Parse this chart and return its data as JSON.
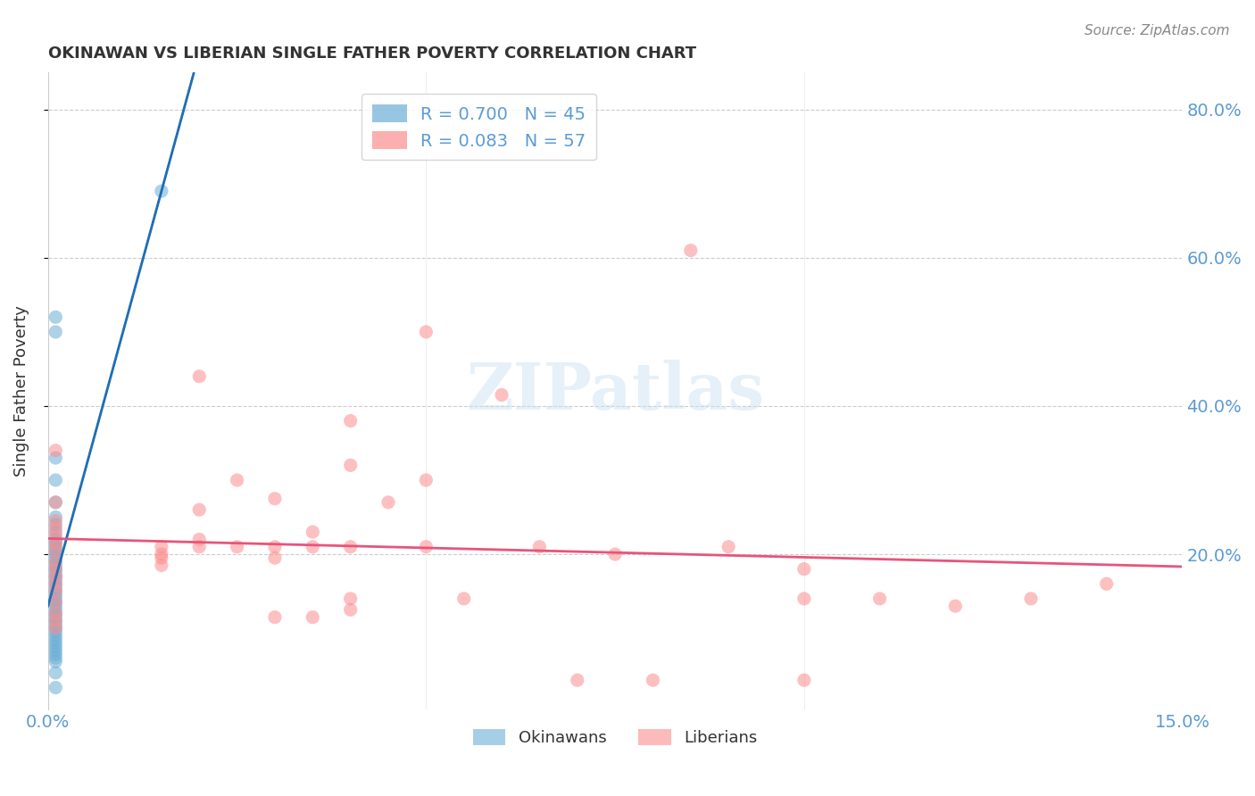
{
  "title": "OKINAWAN VS LIBERIAN SINGLE FATHER POVERTY CORRELATION CHART",
  "source": "Source: ZipAtlas.com",
  "ylabel": "Single Father Poverty",
  "xlabel_ticks": [
    "0.0%",
    "15.0%"
  ],
  "ylabel_ticks": [
    "20.0%",
    "40.0%",
    "60.0%",
    "80.0%"
  ],
  "xlim": [
    0.0,
    0.15
  ],
  "ylim": [
    -0.01,
    0.85
  ],
  "legend_entries": [
    {
      "label": "R = 0.700   N = 45",
      "color": "#6baed6"
    },
    {
      "label": "R = 0.083   N = 57",
      "color": "#fc8d8d"
    }
  ],
  "watermark": "ZIPatlas",
  "okinawan_color": "#6baed6",
  "liberian_color": "#fc8d8d",
  "okinawan_line_color": "#1f6eb5",
  "liberian_line_color": "#e8547a",
  "background_color": "#ffffff",
  "grid_color": "#cccccc",
  "tick_color": "#5b9bd5",
  "okinawan_points": [
    [
      0.001,
      0.33
    ],
    [
      0.001,
      0.5
    ],
    [
      0.001,
      0.52
    ],
    [
      0.001,
      0.3
    ],
    [
      0.001,
      0.27
    ],
    [
      0.001,
      0.25
    ],
    [
      0.001,
      0.24
    ],
    [
      0.001,
      0.23
    ],
    [
      0.001,
      0.22
    ],
    [
      0.001,
      0.215
    ],
    [
      0.001,
      0.21
    ],
    [
      0.001,
      0.205
    ],
    [
      0.001,
      0.2
    ],
    [
      0.001,
      0.195
    ],
    [
      0.001,
      0.19
    ],
    [
      0.001,
      0.185
    ],
    [
      0.001,
      0.18
    ],
    [
      0.001,
      0.175
    ],
    [
      0.001,
      0.17
    ],
    [
      0.001,
      0.165
    ],
    [
      0.001,
      0.16
    ],
    [
      0.001,
      0.155
    ],
    [
      0.001,
      0.15
    ],
    [
      0.001,
      0.145
    ],
    [
      0.001,
      0.14
    ],
    [
      0.001,
      0.135
    ],
    [
      0.001,
      0.13
    ],
    [
      0.001,
      0.125
    ],
    [
      0.001,
      0.12
    ],
    [
      0.001,
      0.115
    ],
    [
      0.001,
      0.11
    ],
    [
      0.001,
      0.105
    ],
    [
      0.001,
      0.1
    ],
    [
      0.001,
      0.095
    ],
    [
      0.001,
      0.09
    ],
    [
      0.001,
      0.085
    ],
    [
      0.001,
      0.08
    ],
    [
      0.001,
      0.075
    ],
    [
      0.001,
      0.07
    ],
    [
      0.001,
      0.065
    ],
    [
      0.001,
      0.06
    ],
    [
      0.001,
      0.055
    ],
    [
      0.001,
      0.04
    ],
    [
      0.001,
      0.02
    ],
    [
      0.015,
      0.69
    ]
  ],
  "liberian_points": [
    [
      0.001,
      0.34
    ],
    [
      0.001,
      0.27
    ],
    [
      0.001,
      0.245
    ],
    [
      0.001,
      0.235
    ],
    [
      0.001,
      0.225
    ],
    [
      0.001,
      0.215
    ],
    [
      0.001,
      0.205
    ],
    [
      0.001,
      0.19
    ],
    [
      0.001,
      0.18
    ],
    [
      0.001,
      0.17
    ],
    [
      0.001,
      0.16
    ],
    [
      0.001,
      0.15
    ],
    [
      0.001,
      0.135
    ],
    [
      0.001,
      0.12
    ],
    [
      0.001,
      0.11
    ],
    [
      0.001,
      0.1
    ],
    [
      0.015,
      0.21
    ],
    [
      0.015,
      0.2
    ],
    [
      0.015,
      0.195
    ],
    [
      0.015,
      0.185
    ],
    [
      0.02,
      0.44
    ],
    [
      0.02,
      0.26
    ],
    [
      0.02,
      0.22
    ],
    [
      0.02,
      0.21
    ],
    [
      0.025,
      0.3
    ],
    [
      0.025,
      0.21
    ],
    [
      0.03,
      0.275
    ],
    [
      0.03,
      0.21
    ],
    [
      0.03,
      0.195
    ],
    [
      0.03,
      0.115
    ],
    [
      0.035,
      0.23
    ],
    [
      0.035,
      0.21
    ],
    [
      0.035,
      0.115
    ],
    [
      0.04,
      0.38
    ],
    [
      0.04,
      0.32
    ],
    [
      0.04,
      0.21
    ],
    [
      0.04,
      0.14
    ],
    [
      0.04,
      0.125
    ],
    [
      0.045,
      0.27
    ],
    [
      0.05,
      0.5
    ],
    [
      0.05,
      0.3
    ],
    [
      0.05,
      0.21
    ],
    [
      0.055,
      0.14
    ],
    [
      0.06,
      0.415
    ],
    [
      0.065,
      0.21
    ],
    [
      0.07,
      0.03
    ],
    [
      0.075,
      0.2
    ],
    [
      0.08,
      0.03
    ],
    [
      0.085,
      0.61
    ],
    [
      0.09,
      0.21
    ],
    [
      0.1,
      0.03
    ],
    [
      0.1,
      0.14
    ],
    [
      0.1,
      0.18
    ],
    [
      0.11,
      0.14
    ],
    [
      0.12,
      0.13
    ],
    [
      0.13,
      0.14
    ],
    [
      0.14,
      0.16
    ]
  ]
}
